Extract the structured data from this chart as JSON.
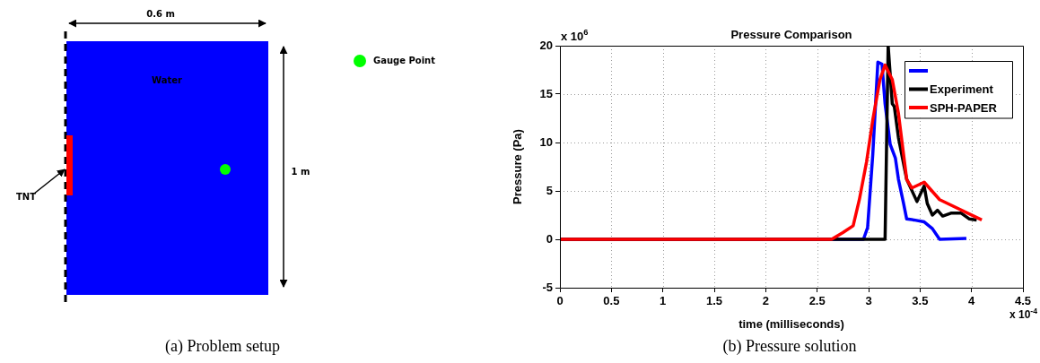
{
  "chart_data": [
    {
      "type": "other",
      "title": "(a) Problem setup",
      "annotations": [
        "0.6 m",
        "Water",
        "Gauge Point",
        "TNT",
        "1 m"
      ]
    },
    {
      "type": "line",
      "title": "Pressure Comparison",
      "xlabel": "time (milliseconds)",
      "ylabel": "Pressure (Pa)",
      "annotations": [
        "x 10$^{6}$",
        "x 10$^{-4}$",
        "(b) Pressure solution"
      ],
      "xlim": [
        0,
        4.5
      ],
      "xticks": [
        0,
        0.5,
        1,
        1.5,
        2,
        2.5,
        3,
        3.5,
        4,
        4.5
      ],
      "ylim": [
        -5,
        20
      ],
      "yticks": [
        -5,
        0,
        5,
        10,
        15,
        20
      ],
      "grid": true,
      "legend": "top right",
      "series": [
        {
          "color": "#0000ff",
          "x": [
            0,
            2.95,
            2.99,
            3.04,
            3.09,
            3.13,
            3.16,
            3.21,
            3.26,
            3.29,
            3.34,
            3.37,
            3.44,
            3.54,
            3.62,
            3.69,
            3.95
          ],
          "values": [
            0,
            0,
            1.2,
            8.7,
            18.3,
            18.1,
            14,
            9.8,
            8.4,
            6.2,
            3.7,
            2.1,
            2,
            1.8,
            1.1,
            0,
            0.1
          ]
        },
        {
          "name": "Experiment",
          "color": "#000000",
          "x": [
            0,
            3.16,
            3.19,
            3.23,
            3.25,
            3.29,
            3.37,
            3.47,
            3.54,
            3.57,
            3.62,
            3.67,
            3.72,
            3.8,
            3.9,
            3.98,
            4.05
          ],
          "values": [
            0,
            0,
            20,
            14,
            13.7,
            10.5,
            6.2,
            3.9,
            5.5,
            3.7,
            2.5,
            3,
            2.4,
            2.7,
            2.7,
            2.1,
            2
          ]
        },
        {
          "name": "SPH-PAPER",
          "color": "#ff0000",
          "x": [
            0,
            2.64,
            2.75,
            2.85,
            2.91,
            2.98,
            3.04,
            3.11,
            3.16,
            3.23,
            3.29,
            3.37,
            3.42,
            3.54,
            3.69,
            4.1
          ],
          "values": [
            0,
            0,
            0.7,
            1.4,
            4.1,
            8,
            12.3,
            16.5,
            18,
            16.5,
            13,
            6.2,
            5.3,
            5.9,
            4.1,
            2
          ]
        }
      ]
    }
  ]
}
